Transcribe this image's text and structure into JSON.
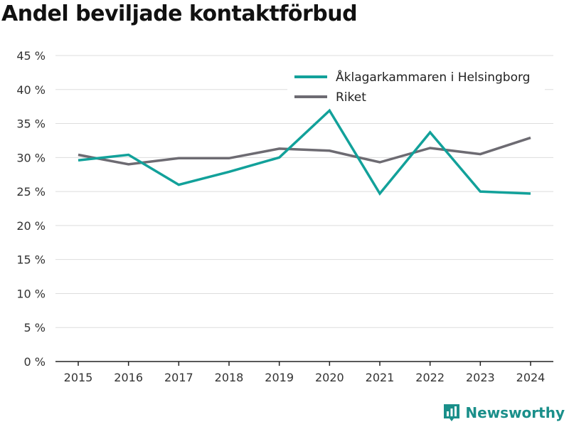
{
  "chart_data": {
    "type": "line",
    "title": "Andel beviljade kontaktförbud",
    "xlabel": "",
    "ylabel": "",
    "x": [
      2015,
      2016,
      2017,
      2018,
      2019,
      2020,
      2021,
      2022,
      2023,
      2024
    ],
    "ylim": [
      0,
      45
    ],
    "yticks": [
      0,
      5,
      10,
      15,
      20,
      25,
      30,
      35,
      40,
      45
    ],
    "ytick_labels": [
      "0 %",
      "5 %",
      "10 %",
      "15 %",
      "20 %",
      "25 %",
      "30 %",
      "35 %",
      "40 %",
      "45 %"
    ],
    "grid": true,
    "legend_position": "top-right",
    "series": [
      {
        "name": "Åklagarkammaren i Helsingborg",
        "color": "#12a19a",
        "values": [
          29.6,
          30.4,
          26.0,
          27.9,
          30.0,
          36.9,
          24.7,
          33.7,
          25.0,
          24.7
        ]
      },
      {
        "name": "Riket",
        "color": "#6d6b72",
        "values": [
          30.4,
          29.0,
          29.9,
          29.9,
          31.3,
          31.0,
          29.3,
          31.4,
          30.5,
          32.9
        ]
      }
    ]
  },
  "brand": {
    "name": "Newsworthy",
    "icon": "bar-chart-logo-icon",
    "color": "#1a8f8a"
  }
}
